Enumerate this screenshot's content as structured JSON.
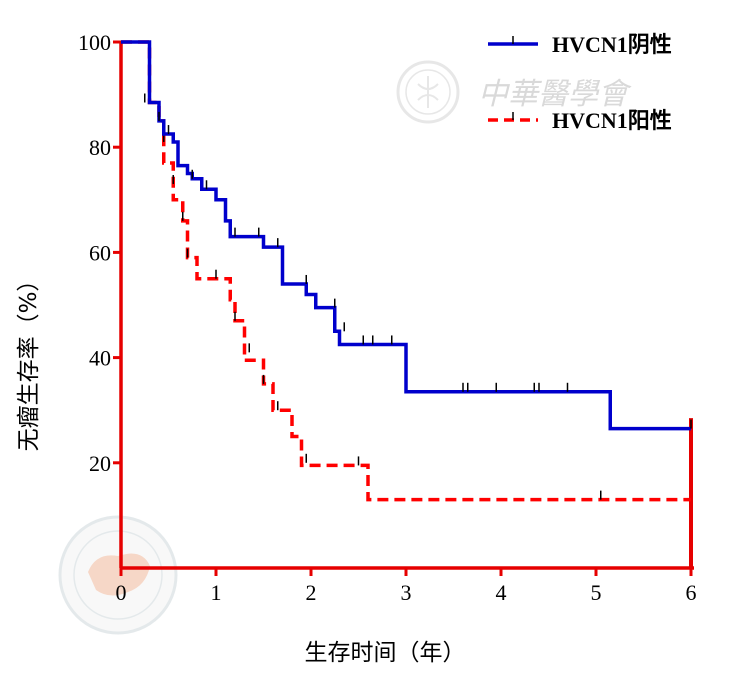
{
  "chart_data": {
    "type": "line",
    "subtype": "kaplan-meier-step",
    "xlabel": "生存时间（年）",
    "ylabel": "无瘤生存率（%）",
    "xlim": [
      0,
      6
    ],
    "ylim": [
      0,
      100
    ],
    "x_ticks": [
      "0",
      "1",
      "2",
      "3",
      "4",
      "5",
      "6"
    ],
    "y_ticks": [
      "20",
      "40",
      "60",
      "80",
      "100"
    ],
    "y_tick_values": [
      20,
      40,
      60,
      80,
      100
    ],
    "grid": false,
    "legend_position": "top-right",
    "axis_color": "#e60000",
    "watermark": "中華醫學會",
    "series": [
      {
        "name": "HVCN1阴性",
        "color": "#0000cc",
        "style": "solid",
        "steps": [
          [
            0,
            100
          ],
          [
            0.3,
            88.5
          ],
          [
            0.4,
            85
          ],
          [
            0.45,
            82.5
          ],
          [
            0.55,
            81
          ],
          [
            0.6,
            76.5
          ],
          [
            0.7,
            75
          ],
          [
            0.75,
            74
          ],
          [
            0.85,
            72
          ],
          [
            1.0,
            70
          ],
          [
            1.1,
            66
          ],
          [
            1.15,
            63
          ],
          [
            1.5,
            61
          ],
          [
            1.7,
            54
          ],
          [
            1.95,
            52
          ],
          [
            2.05,
            49.5
          ],
          [
            2.25,
            45
          ],
          [
            2.3,
            42.5
          ],
          [
            3.0,
            33.5
          ],
          [
            5.15,
            26.5
          ],
          [
            6.0,
            26.5
          ]
        ],
        "censored": [
          [
            0.25,
            88.5
          ],
          [
            0.4,
            85
          ],
          [
            0.5,
            82.5
          ],
          [
            0.75,
            74
          ],
          [
            0.9,
            72
          ],
          [
            1.2,
            63
          ],
          [
            1.45,
            63
          ],
          [
            1.65,
            61
          ],
          [
            1.95,
            54
          ],
          [
            2.25,
            49.5
          ],
          [
            2.35,
            45
          ],
          [
            2.55,
            42.5
          ],
          [
            2.65,
            42.5
          ],
          [
            2.85,
            42.5
          ],
          [
            3.6,
            33.5
          ],
          [
            3.65,
            33.5
          ],
          [
            3.95,
            33.5
          ],
          [
            4.35,
            33.5
          ],
          [
            4.4,
            33.5
          ],
          [
            4.7,
            33.5
          ],
          [
            6.0,
            26.5
          ]
        ]
      },
      {
        "name": "HVCN1阳性",
        "color": "#ff0000",
        "style": "dashed",
        "steps": [
          [
            0,
            100
          ],
          [
            0.3,
            88.5
          ],
          [
            0.4,
            85
          ],
          [
            0.45,
            77
          ],
          [
            0.55,
            70
          ],
          [
            0.65,
            66
          ],
          [
            0.7,
            59
          ],
          [
            0.8,
            55
          ],
          [
            1.15,
            51
          ],
          [
            1.2,
            47
          ],
          [
            1.3,
            39.5
          ],
          [
            1.5,
            35
          ],
          [
            1.6,
            30
          ],
          [
            1.8,
            25
          ],
          [
            1.9,
            19.5
          ],
          [
            2.6,
            13
          ],
          [
            6.0,
            13
          ]
        ],
        "censored": [
          [
            0.45,
            81
          ],
          [
            0.55,
            73
          ],
          [
            0.65,
            66
          ],
          [
            0.7,
            59
          ],
          [
            1.0,
            55
          ],
          [
            1.2,
            47
          ],
          [
            1.35,
            41
          ],
          [
            1.5,
            35
          ],
          [
            1.65,
            30
          ],
          [
            1.95,
            20
          ],
          [
            2.5,
            19.5
          ],
          [
            5.05,
            13
          ]
        ]
      }
    ]
  }
}
